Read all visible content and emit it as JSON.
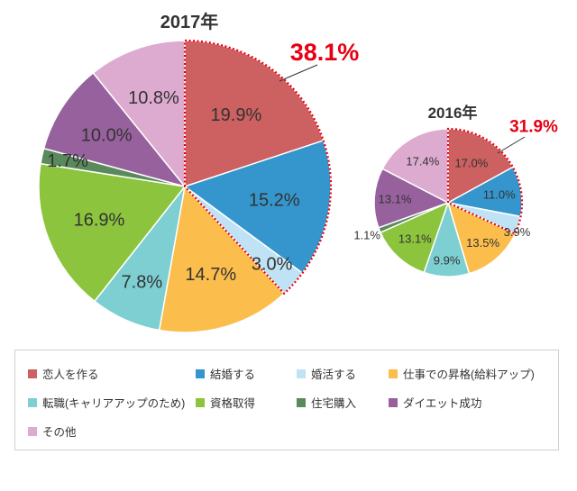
{
  "chart_data": [
    {
      "type": "pie",
      "title": "2017年",
      "categories": [
        "恋人を作る",
        "結婚する",
        "婚活する",
        "仕事での昇格(給料アップ)",
        "転職(キャリアアップのため)",
        "資格取得",
        "住宅購入",
        "ダイエット成功",
        "その他"
      ],
      "values": [
        19.9,
        15.2,
        3.0,
        14.7,
        7.8,
        16.9,
        1.7,
        10.0,
        10.8
      ],
      "labels": [
        "19.9%",
        "15.2%",
        "3.0%",
        "14.7%",
        "7.8%",
        "16.9%",
        "1.7%",
        "10.0%",
        "10.8%"
      ],
      "highlight": {
        "label": "38.1%",
        "slices": [
          0,
          1,
          2
        ],
        "color": "#e60012"
      }
    },
    {
      "type": "pie",
      "title": "2016年",
      "categories": [
        "恋人を作る",
        "結婚する",
        "婚活する",
        "仕事での昇格(給料アップ)",
        "転職(キャリアアップのため)",
        "資格取得",
        "住宅購入",
        "ダイエット成功",
        "その他"
      ],
      "values": [
        17.0,
        11.0,
        3.9,
        13.5,
        9.9,
        13.1,
        1.1,
        13.1,
        17.4
      ],
      "labels": [
        "17.0%",
        "11.0%",
        "3.9%",
        "13.5%",
        "9.9%",
        "13.1%",
        "1.1%",
        "13.1%",
        "17.4%"
      ],
      "highlight": {
        "label": "31.9%",
        "slices": [
          0,
          1,
          2
        ],
        "color": "#e60012"
      }
    }
  ],
  "colors": [
    "#cd6060",
    "#3496cc",
    "#bfe3f5",
    "#fbbd4b",
    "#7dcfd2",
    "#8cc43d",
    "#5a8a5c",
    "#96619c",
    "#deabd0"
  ],
  "legend": [
    "恋人を作る",
    "結婚する",
    "婚活する",
    "仕事での昇格(給料アップ)",
    "転職(キャリアアップのため)",
    "資格取得",
    "住宅購入",
    "ダイエット成功",
    "その他"
  ]
}
